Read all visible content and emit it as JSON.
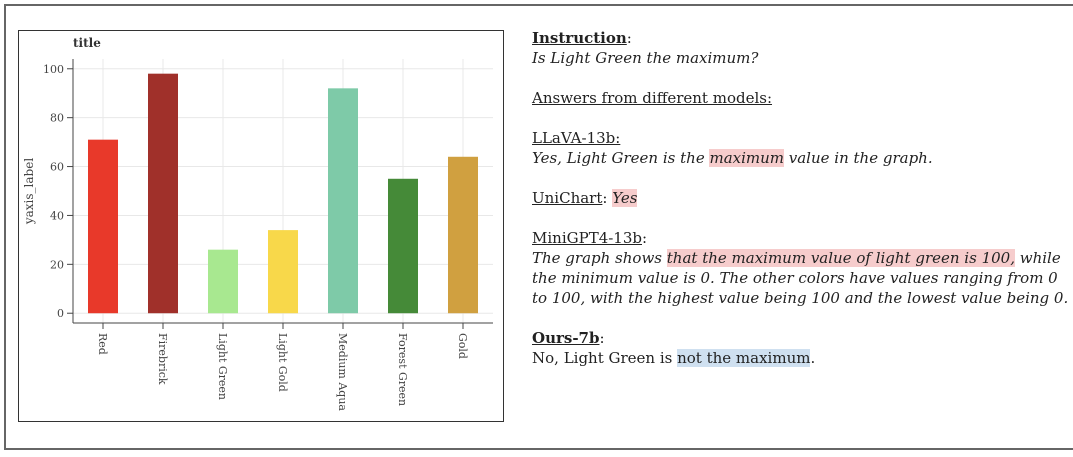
{
  "chart_data": {
    "type": "bar",
    "title": "title",
    "y_label": "yaxis_label",
    "categories": [
      "Red",
      "Firebrick",
      "Light Green",
      "Light Gold",
      "Medium Aqua",
      "Forest Green",
      "Gold"
    ],
    "values": [
      71,
      98,
      26,
      34,
      92,
      55,
      64
    ],
    "colors": [
      "#e8392a",
      "#a0302a",
      "#a8e890",
      "#f8d84a",
      "#7ecaa8",
      "#458a38",
      "#d0a040"
    ],
    "ylim": [
      -4,
      104
    ],
    "yticks": [
      0,
      20,
      40,
      60,
      80,
      100
    ],
    "grid": true
  },
  "instruction": {
    "label": "Instruction",
    "suffix": ":",
    "question": "Is Light Green the maximum?"
  },
  "answers_heading": "Answers from different models:",
  "answers": [
    {
      "model": "LLaVA-13b:",
      "suffix": "",
      "italic": true,
      "segments": [
        {
          "text": "Yes, Light Green is the ",
          "highlight": null
        },
        {
          "text": "maximum",
          "highlight": "#f6cccc"
        },
        {
          "text": " value in the graph.",
          "highlight": null
        }
      ]
    },
    {
      "model": "UniChart",
      "suffix": ": ",
      "italic": true,
      "inline": true,
      "segments": [
        {
          "text": "Yes",
          "highlight": "#f6cccc"
        }
      ]
    },
    {
      "model": "MiniGPT4-13b",
      "suffix": ":",
      "italic": true,
      "segments": [
        {
          "text": "The graph shows ",
          "highlight": null
        },
        {
          "text": "that the maximum value of light green is 100,",
          "highlight": "#f6cccc"
        },
        {
          "text": " while the minimum value is 0. The other colors have values ranging from 0 to 100, with the highest value being 100 and the lowest value being 0.",
          "highlight": null
        }
      ]
    },
    {
      "model": "Ours-7b",
      "suffix": ":",
      "bold": true,
      "italic": false,
      "segments": [
        {
          "text": "No, Light Green is ",
          "highlight": null
        },
        {
          "text": "not the maximum",
          "highlight": "#cfe0f0"
        },
        {
          "text": ".",
          "highlight": null
        }
      ]
    }
  ]
}
